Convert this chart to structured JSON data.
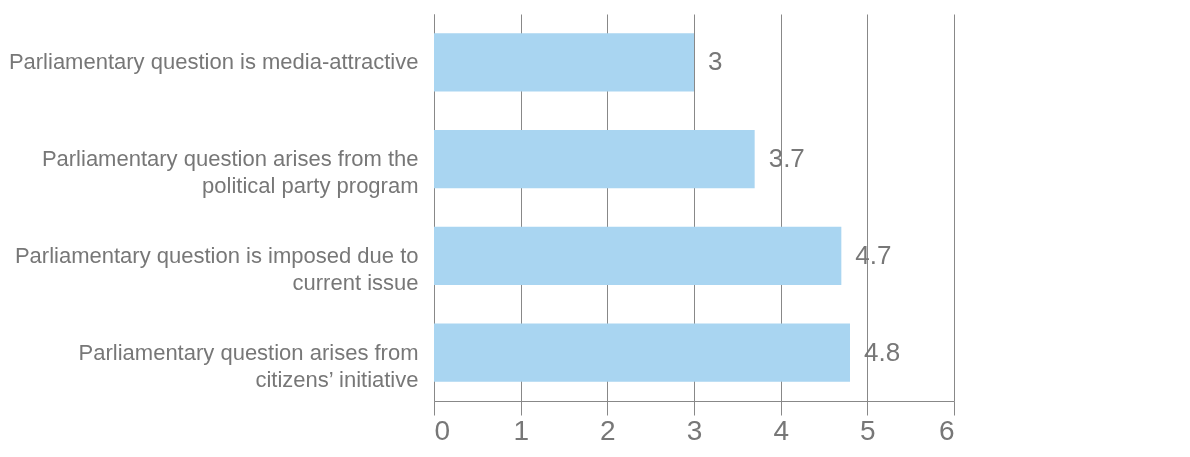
{
  "chart_data": {
    "type": "bar",
    "orientation": "horizontal",
    "categories": [
      "Parliamentary question is media-attractive",
      "Parliamentary question arises from the political party program",
      "Parliamentary question is imposed due to current issue",
      "Parliamentary question arises from citizens’ initiative"
    ],
    "values": [
      3,
      3.7,
      4.7,
      4.8
    ],
    "color": "#a9d5f1",
    "xlim": [
      0,
      6
    ],
    "xticks": [
      0,
      1,
      2,
      3,
      4,
      5,
      6
    ],
    "grid": "x",
    "data_labels": true
  }
}
